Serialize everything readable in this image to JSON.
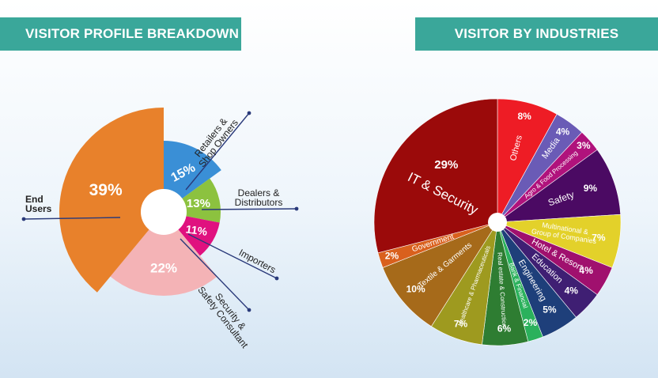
{
  "panels": {
    "left_title": "VISITOR PROFILE BREAKDOWN",
    "right_title": "VISITOR BY INDUSTRIES"
  },
  "chart_data": [
    {
      "type": "pie",
      "title": "VISITOR PROFILE BREAKDOWN",
      "slices": [
        {
          "name": "Retailers & Shop Owners",
          "label_lines": [
            "Retailers &",
            "Shop Owners"
          ],
          "value": 15,
          "display": "15%",
          "color": "#3a8fd6"
        },
        {
          "name": "Dealers & Distributors",
          "label_lines": [
            "Dealers &",
            "Distributors"
          ],
          "value": 13,
          "display": "13%",
          "color": "#8cc23f"
        },
        {
          "name": "Importers",
          "label_lines": [
            "Importers"
          ],
          "value": 11,
          "display": "11%",
          "color": "#e0117f"
        },
        {
          "name": "Security & Safety Consultant",
          "label_lines": [
            "Security &",
            "Safety Consultant"
          ],
          "value": 22,
          "display": "22%",
          "color": "#f4b3b6"
        },
        {
          "name": "End Users",
          "label_lines": [
            "End",
            "Users"
          ],
          "value": 39,
          "display": "39%",
          "color": "#e8812b"
        }
      ]
    },
    {
      "type": "pie",
      "title": "VISITOR BY INDUSTRIES",
      "slices": [
        {
          "name": "Others",
          "value": 8,
          "display": "8%",
          "color": "#ee1c25"
        },
        {
          "name": "Media",
          "value": 4,
          "display": "4%",
          "color": "#6a5bb6"
        },
        {
          "name": "Agro & Food Processing",
          "value": 3,
          "display": "3%",
          "color": "#b0127c"
        },
        {
          "name": "Safety",
          "value": 9,
          "display": "9%",
          "color": "#4b0a63"
        },
        {
          "name": "Multinational & Group of Companies",
          "label_lines": [
            "Multinational &",
            "Group of Companies"
          ],
          "value": 7,
          "display": "7%",
          "color": "#e3d12a"
        },
        {
          "name": "Hotel & Resort",
          "value": 4,
          "display": "4%",
          "color": "#a0106e"
        },
        {
          "name": "Education",
          "value": 4,
          "display": "4%",
          "color": "#3f1f73"
        },
        {
          "name": "Engineering",
          "value": 5,
          "display": "5%",
          "color": "#1e3f7a"
        },
        {
          "name": "Bank & Financial",
          "value": 2,
          "display": "2%",
          "color": "#2bb15c"
        },
        {
          "name": "Real estate & Construction",
          "value": 6,
          "display": "6%",
          "color": "#2e7d32"
        },
        {
          "name": "Healthcare & Pharmaceuticals",
          "value": 7,
          "display": "7%",
          "color": "#9e9a1f"
        },
        {
          "name": "Textile & Garments",
          "value": 10,
          "display": "10%",
          "color": "#a66a1a"
        },
        {
          "name": "Government",
          "value": 2,
          "display": "2%",
          "color": "#d9601d"
        },
        {
          "name": "IT & Security",
          "value": 29,
          "display": "29%",
          "color": "#9b0a0a"
        }
      ]
    }
  ]
}
